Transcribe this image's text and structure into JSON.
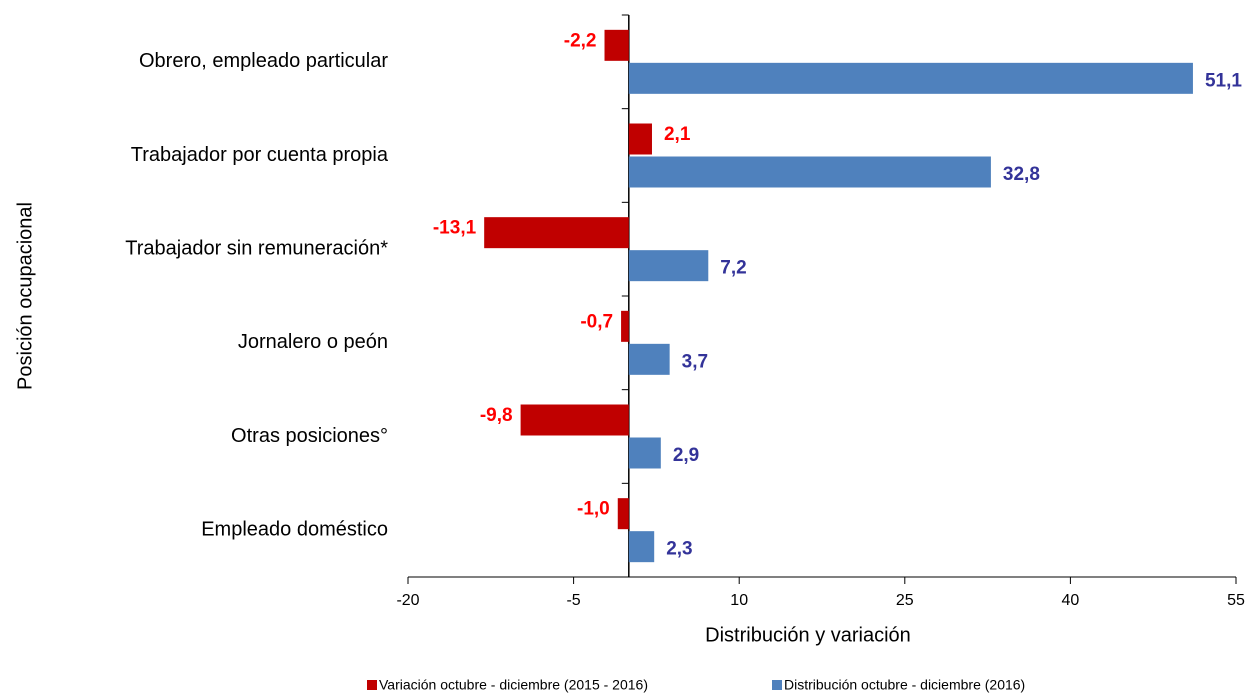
{
  "chart_data": {
    "type": "hbar",
    "categories": [
      "Obrero, empleado particular",
      "Trabajador por cuenta propia",
      "Trabajador sin remuneración*",
      "Jornalero o peón",
      "Otras posiciones°",
      "Empleado doméstico"
    ],
    "series": [
      {
        "name": "Variación octubre - diciembre (2015 - 2016)",
        "color": "#c00000",
        "label_color": "#ff0000",
        "values": [
          -2.2,
          2.1,
          -13.1,
          -0.7,
          -9.8,
          -1.0
        ],
        "value_labels": [
          "-2,2",
          "2,1",
          "-13,1",
          "-0,7",
          "-9,8",
          "-1,0"
        ]
      },
      {
        "name": "Distribución octubre - diciembre (2016)",
        "color": "#4f81bd",
        "label_color": "#333399",
        "values": [
          51.1,
          32.8,
          7.2,
          3.7,
          2.9,
          2.3
        ],
        "value_labels": [
          "51,1",
          "32,8",
          "7,2",
          "3,7",
          "2,9",
          "2,3"
        ]
      }
    ],
    "xlabel": "Distribución y variación",
    "ylabel": "Posición ocupacional",
    "xlim": [
      -20,
      55
    ],
    "xticks": [
      -20,
      -5,
      10,
      25,
      40,
      55
    ],
    "legend": "bottom"
  }
}
